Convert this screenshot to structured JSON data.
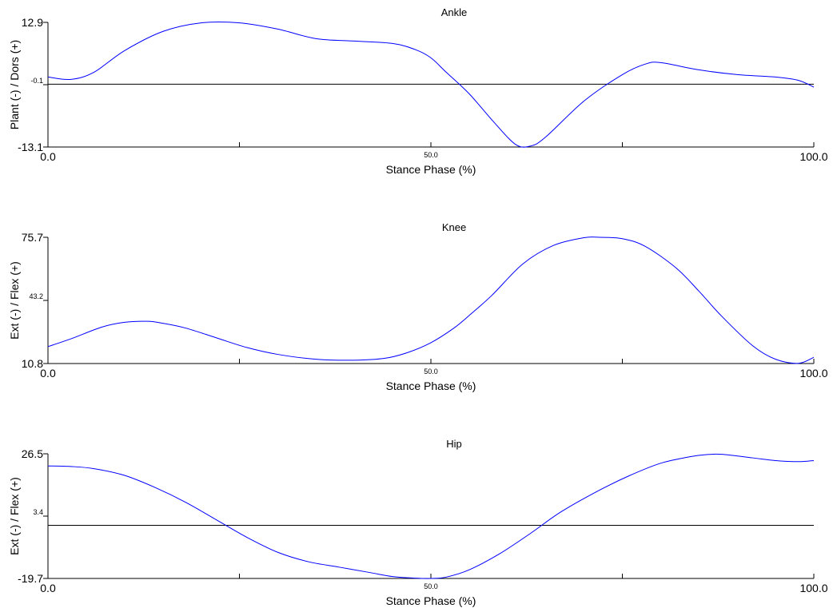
{
  "line_color": "#0000ff",
  "chart_data": [
    {
      "type": "line",
      "title": "Ankle",
      "xlabel": "Stance Phase (%)",
      "ylabel": "Plant (-) / Dors (+)",
      "xlim": [
        0,
        100
      ],
      "ylim": [
        -13.1,
        12.9
      ],
      "x_tick_labels": [
        "0.0",
        "50.0",
        "100.0"
      ],
      "y_tick_labels": [
        "12.9",
        "-0.1",
        "-13.1"
      ],
      "zero_line": 0,
      "x": [
        0,
        3,
        6,
        10,
        15,
        20,
        25,
        30,
        35,
        40,
        45,
        48,
        50,
        52,
        55,
        58,
        61,
        63,
        65,
        70,
        75,
        78,
        80,
        85,
        90,
        95,
        98,
        100
      ],
      "y": [
        1.5,
        1.0,
        2.5,
        7.0,
        11.0,
        12.8,
        12.8,
        11.5,
        9.5,
        9.0,
        8.5,
        7.2,
        5.5,
        2.5,
        -2.0,
        -7.5,
        -12.5,
        -12.9,
        -11.0,
        -3.5,
        2.0,
        4.2,
        4.5,
        3.0,
        2.0,
        1.5,
        0.8,
        -0.6
      ]
    },
    {
      "type": "line",
      "title": "Knee",
      "xlabel": "Stance Phase (%)",
      "ylabel": "Ext (-) / Flex (+)",
      "xlim": [
        0,
        100
      ],
      "ylim": [
        10.8,
        75.7
      ],
      "x_tick_labels": [
        "0.0",
        "50.0",
        "100.0"
      ],
      "y_tick_labels": [
        "75.7",
        "43.2",
        "10.8"
      ],
      "x": [
        0,
        3,
        7,
        10,
        13,
        15,
        18,
        22,
        26,
        30,
        35,
        40,
        44,
        47,
        50,
        53,
        55,
        58,
        62,
        66,
        70,
        72,
        75,
        78,
        82,
        85,
        88,
        92,
        95,
        98,
        100
      ],
      "y": [
        19.5,
        23.5,
        29.5,
        32.0,
        32.5,
        31.5,
        29.0,
        24.0,
        19.0,
        15.5,
        13.0,
        12.5,
        13.5,
        16.5,
        21.5,
        29.0,
        35.5,
        46.0,
        62.0,
        71.5,
        75.5,
        75.7,
        75.0,
        71.0,
        60.0,
        48.0,
        35.0,
        20.0,
        13.0,
        10.9,
        14.0
      ]
    },
    {
      "type": "line",
      "title": "Hip",
      "xlabel": "Stance Phase (%)",
      "ylabel": "Ext (-) / Flex (+)",
      "xlim": [
        0,
        100
      ],
      "ylim": [
        -19.7,
        26.5
      ],
      "x_tick_labels": [
        "0.0",
        "50.0",
        "100.0"
      ],
      "y_tick_labels": [
        "26.5",
        "3.4",
        "-19.7"
      ],
      "zero_line": 0,
      "x": [
        0,
        3,
        6,
        10,
        14,
        18,
        22,
        26,
        30,
        34,
        38,
        42,
        45,
        48,
        50,
        52,
        55,
        59,
        63,
        67,
        72,
        76,
        80,
        84,
        86,
        88,
        92,
        95,
        98,
        100
      ],
      "y": [
        22.0,
        21.8,
        21.0,
        18.5,
        14.0,
        8.5,
        2.0,
        -4.5,
        -10.0,
        -13.5,
        -15.5,
        -17.5,
        -19.0,
        -19.6,
        -19.7,
        -19.2,
        -16.5,
        -10.5,
        -3.0,
        5.0,
        13.0,
        18.5,
        23.0,
        25.5,
        26.2,
        26.3,
        25.0,
        24.0,
        23.6,
        24.0
      ]
    }
  ]
}
